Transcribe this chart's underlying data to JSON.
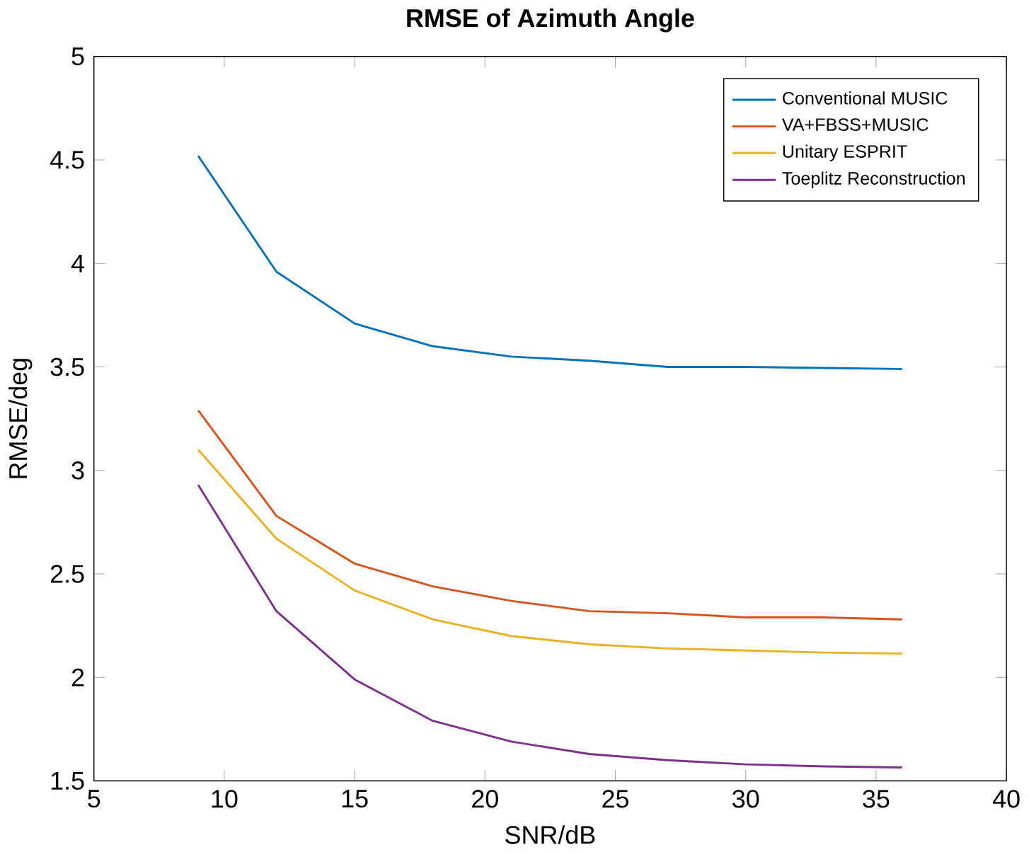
{
  "chart_data": {
    "type": "line",
    "title": "RMSE of Azimuth Angle",
    "xlabel": "SNR/dB",
    "ylabel": "RMSE/deg",
    "x": [
      9,
      12,
      15,
      18,
      21,
      24,
      27,
      30,
      33,
      36
    ],
    "series": [
      {
        "name": "Conventional MUSIC",
        "color": "#0072bd",
        "values": [
          4.52,
          3.96,
          3.71,
          3.6,
          3.55,
          3.53,
          3.5,
          3.5,
          3.495,
          3.49
        ]
      },
      {
        "name": "VA+FBSS+MUSIC",
        "color": "#d95319",
        "values": [
          3.29,
          2.78,
          2.55,
          2.44,
          2.37,
          2.32,
          2.31,
          2.29,
          2.29,
          2.28
        ]
      },
      {
        "name": "Unitary ESPRIT",
        "color": "#edb120",
        "values": [
          3.1,
          2.67,
          2.42,
          2.28,
          2.2,
          2.16,
          2.14,
          2.13,
          2.12,
          2.115
        ]
      },
      {
        "name": "Toeplitz Reconstruction",
        "color": "#7e2f8e",
        "values": [
          2.93,
          2.32,
          1.99,
          1.79,
          1.69,
          1.63,
          1.6,
          1.58,
          1.57,
          1.565
        ]
      }
    ],
    "xlim": [
      5,
      40
    ],
    "ylim": [
      1.5,
      5
    ],
    "xticks": [
      5,
      10,
      15,
      20,
      25,
      30,
      35,
      40
    ],
    "yticks": [
      1.5,
      2,
      2.5,
      3,
      3.5,
      4,
      4.5,
      5
    ],
    "legend": "top right",
    "grid": false,
    "marker": "none",
    "line_style": "solid"
  }
}
